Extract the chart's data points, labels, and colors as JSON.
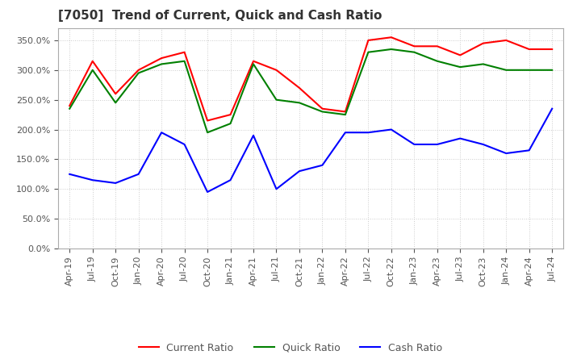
{
  "title": "[7050]  Trend of Current, Quick and Cash Ratio",
  "x_labels": [
    "Apr-19",
    "Jul-19",
    "Oct-19",
    "Jan-20",
    "Apr-20",
    "Jul-20",
    "Oct-20",
    "Jan-21",
    "Apr-21",
    "Jul-21",
    "Oct-21",
    "Jan-22",
    "Apr-22",
    "Jul-22",
    "Oct-22",
    "Jan-23",
    "Apr-23",
    "Jul-23",
    "Oct-23",
    "Jan-24",
    "Apr-24",
    "Jul-24"
  ],
  "current_ratio": [
    240,
    315,
    260,
    300,
    320,
    330,
    215,
    225,
    315,
    300,
    270,
    235,
    230,
    350,
    355,
    340,
    340,
    325,
    345,
    350,
    335,
    335
  ],
  "quick_ratio": [
    235,
    300,
    245,
    295,
    310,
    315,
    195,
    210,
    310,
    250,
    245,
    230,
    225,
    330,
    335,
    330,
    315,
    305,
    310,
    300,
    300,
    300
  ],
  "cash_ratio": [
    125,
    115,
    110,
    125,
    195,
    175,
    95,
    115,
    190,
    100,
    130,
    140,
    195,
    195,
    200,
    175,
    175,
    185,
    175,
    160,
    165,
    235
  ],
  "current_color": "#ff0000",
  "quick_color": "#008000",
  "cash_color": "#0000ff",
  "ylim": [
    0,
    370
  ],
  "yticks": [
    0,
    50,
    100,
    150,
    200,
    250,
    300,
    350
  ],
  "background_color": "#ffffff",
  "grid_color": "#cccccc"
}
